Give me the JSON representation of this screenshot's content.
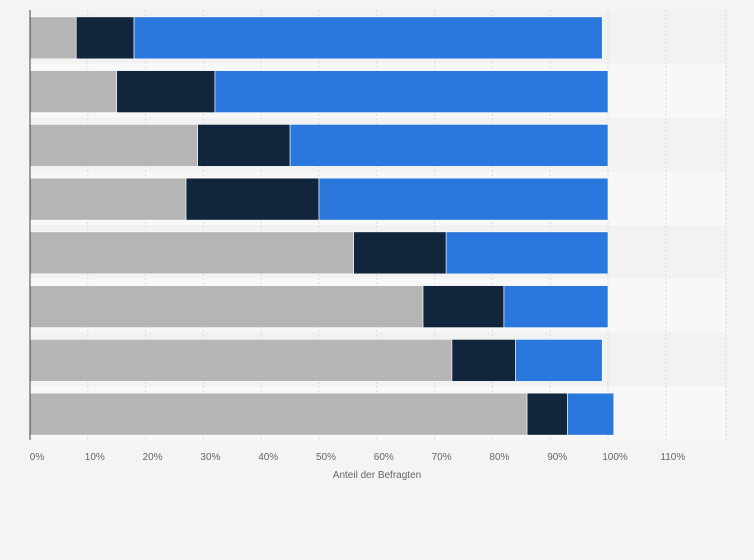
{
  "chart_data": {
    "type": "bar",
    "orientation": "horizontal",
    "stacked": true,
    "title": "",
    "xlabel": "Anteil der Befragten",
    "ylabel": "",
    "xlim": [
      0,
      120
    ],
    "x_ticks": [
      "0%",
      "10%",
      "20%",
      "30%",
      "40%",
      "50%",
      "60%",
      "70%",
      "80%",
      "90%",
      "100%",
      "110%"
    ],
    "grid": true,
    "legend": "none",
    "categories": [
      "",
      "",
      "",
      "",
      "",
      "",
      "",
      ""
    ],
    "series": [
      {
        "color": "#b5b5b5",
        "values": [
          8,
          15,
          29,
          27,
          56,
          68,
          73,
          86
        ]
      },
      {
        "color": "#11263d",
        "values": [
          10,
          17,
          16,
          23,
          16,
          14,
          11,
          7
        ]
      },
      {
        "color": "#2a77dd",
        "values": [
          81,
          68,
          55,
          50,
          28,
          18,
          15,
          8
        ]
      }
    ]
  }
}
